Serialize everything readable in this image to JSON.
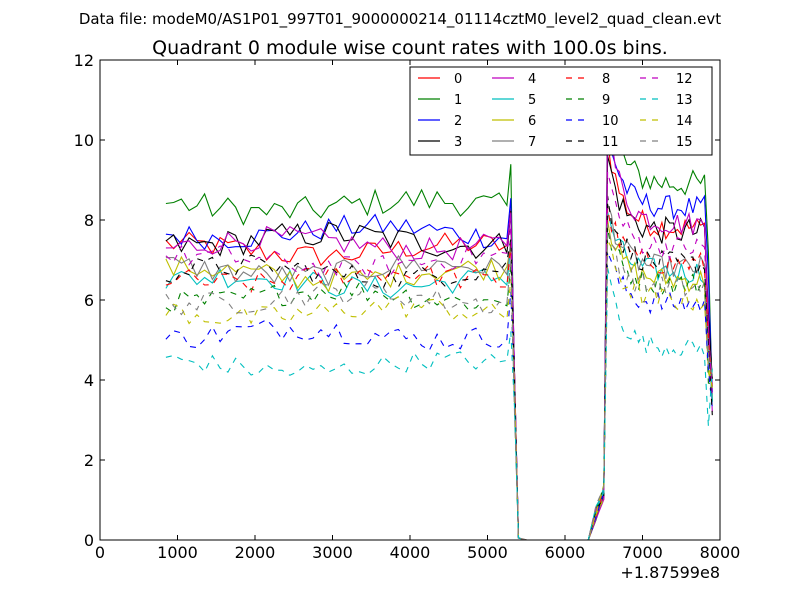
{
  "chart_data": {
    "type": "line",
    "suptitle": "Data file: modeM0/AS1P01_997T01_9000000214_01114cztM0_level2_quad_clean.evt",
    "title": "Quadrant 0 module wise count rates with 100.0s bins.",
    "xlabel": "",
    "ylabel": "",
    "x_offset_label": "+1.87599e8",
    "xlim": [
      0,
      8000
    ],
    "ylim": [
      0,
      12
    ],
    "xticks": [
      0,
      1000,
      2000,
      3000,
      4000,
      5000,
      6000,
      7000,
      8000
    ],
    "yticks": [
      0,
      2,
      4,
      6,
      8,
      10,
      12
    ],
    "legend_position": "top-right",
    "segments": {
      "x_start": 850,
      "dt": 100,
      "drop_x": [
        5300,
        5350,
        5400
      ],
      "gap_x": [
        5400,
        6300
      ],
      "rise_x": [
        6300,
        6400,
        6500,
        6550
      ],
      "post_x_start": 6550,
      "post_x_end": 7900
    },
    "series": [
      {
        "name": "0",
        "color": "#ff0000",
        "dashed": false,
        "base": 7.25,
        "amp": 0.3,
        "post_peak": 10.0,
        "post_level": 7.8
      },
      {
        "name": "1",
        "color": "#008000",
        "dashed": false,
        "base": 8.35,
        "amp": 0.35,
        "post_peak": 11.0,
        "post_level": 8.9
      },
      {
        "name": "2",
        "color": "#0000ff",
        "dashed": false,
        "base": 7.7,
        "amp": 0.3,
        "post_peak": 10.3,
        "post_level": 8.3
      },
      {
        "name": "3",
        "color": "#000000",
        "dashed": false,
        "base": 7.5,
        "amp": 0.35,
        "post_peak": 9.6,
        "post_level": 7.7
      },
      {
        "name": "4",
        "color": "#bf00bf",
        "dashed": false,
        "base": 7.4,
        "amp": 0.3,
        "post_peak": 10.5,
        "post_level": 7.9
      },
      {
        "name": "5",
        "color": "#00bfbf",
        "dashed": false,
        "base": 6.45,
        "amp": 0.3,
        "post_peak": 8.2,
        "post_level": 6.7
      },
      {
        "name": "6",
        "color": "#bfbf00",
        "dashed": false,
        "base": 6.65,
        "amp": 0.3,
        "post_peak": 8.0,
        "post_level": 6.5
      },
      {
        "name": "7",
        "color": "#808080",
        "dashed": false,
        "base": 6.75,
        "amp": 0.3,
        "post_peak": 8.4,
        "post_level": 6.8
      },
      {
        "name": "8",
        "color": "#ff0000",
        "dashed": true,
        "base": 6.55,
        "amp": 0.3,
        "post_peak": 8.3,
        "post_level": 6.9
      },
      {
        "name": "9",
        "color": "#008000",
        "dashed": true,
        "base": 6.1,
        "amp": 0.3,
        "post_peak": 7.8,
        "post_level": 6.4
      },
      {
        "name": "10",
        "color": "#0000ff",
        "dashed": true,
        "base": 5.15,
        "amp": 0.3,
        "post_peak": 7.2,
        "post_level": 5.9
      },
      {
        "name": "11",
        "color": "#000000",
        "dashed": true,
        "base": 6.7,
        "amp": 0.3,
        "post_peak": 8.6,
        "post_level": 6.9
      },
      {
        "name": "12",
        "color": "#bf00bf",
        "dashed": true,
        "base": 6.95,
        "amp": 0.3,
        "post_peak": 9.2,
        "post_level": 7.3
      },
      {
        "name": "13",
        "color": "#00bfbf",
        "dashed": true,
        "base": 4.35,
        "amp": 0.25,
        "post_peak": 6.8,
        "post_level": 4.8
      },
      {
        "name": "14",
        "color": "#bfbf00",
        "dashed": true,
        "base": 5.7,
        "amp": 0.3,
        "post_peak": 7.5,
        "post_level": 6.0
      },
      {
        "name": "15",
        "color": "#808080",
        "dashed": true,
        "base": 6.05,
        "amp": 0.3,
        "post_peak": 7.9,
        "post_level": 6.3
      }
    ]
  }
}
